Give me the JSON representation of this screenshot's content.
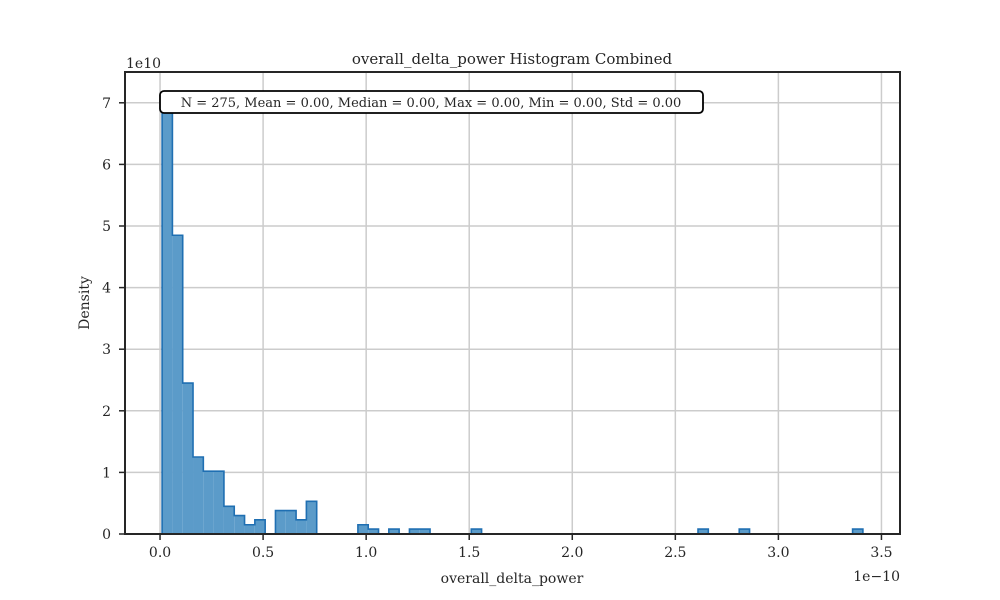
{
  "chart_data": {
    "type": "histogram",
    "title": "overall_delta_power Histogram Combined",
    "xlabel": "overall_delta_power",
    "ylabel": "Density",
    "x_offset_label": "1e−10",
    "y_offset_label": "1e10",
    "xlim": [
      -0.17,
      3.59
    ],
    "ylim": [
      0,
      7.5
    ],
    "x_units_note": "x values in units of 1e-10",
    "y_units_note": "density values in units of 1e10",
    "xticks": [
      {
        "value": 0.0,
        "label": "0.0"
      },
      {
        "value": 0.5,
        "label": "0.5"
      },
      {
        "value": 1.0,
        "label": "1.0"
      },
      {
        "value": 1.5,
        "label": "1.5"
      },
      {
        "value": 2.0,
        "label": "2.0"
      },
      {
        "value": 2.5,
        "label": "2.5"
      },
      {
        "value": 3.0,
        "label": "3.0"
      },
      {
        "value": 3.5,
        "label": "3.5"
      }
    ],
    "yticks": [
      {
        "value": 0,
        "label": "0"
      },
      {
        "value": 1,
        "label": "1"
      },
      {
        "value": 2,
        "label": "2"
      },
      {
        "value": 3,
        "label": "3"
      },
      {
        "value": 4,
        "label": "4"
      },
      {
        "value": 5,
        "label": "5"
      },
      {
        "value": 6,
        "label": "6"
      },
      {
        "value": 7,
        "label": "7"
      }
    ],
    "bin_start": 0.01,
    "bin_width": 0.05,
    "densities": [
      7.0,
      4.85,
      2.45,
      1.25,
      1.02,
      1.02,
      0.45,
      0.3,
      0.15,
      0.23,
      0,
      0.38,
      0.38,
      0.23,
      0.53,
      0,
      0,
      0,
      0,
      0.15,
      0.08,
      0,
      0.08,
      0,
      0.08,
      0.08,
      0,
      0,
      0,
      0,
      0.08,
      0,
      0,
      0,
      0,
      0,
      0,
      0,
      0,
      0,
      0,
      0,
      0,
      0,
      0,
      0,
      0,
      0,
      0,
      0,
      0,
      0,
      0.08,
      0,
      0,
      0,
      0.08,
      0,
      0,
      0,
      0,
      0,
      0,
      0,
      0,
      0,
      0,
      0.08
    ],
    "grid": true,
    "legend": "none",
    "annotation": "N = 275, Mean = 0.00, Median = 0.00, Max = 0.00, Min = 0.00, Std = 0.00",
    "colors": {
      "fill": "#5b9bc9",
      "edge": "#1f6fb2",
      "grid": "#cccccc",
      "axes": "#262626"
    }
  }
}
